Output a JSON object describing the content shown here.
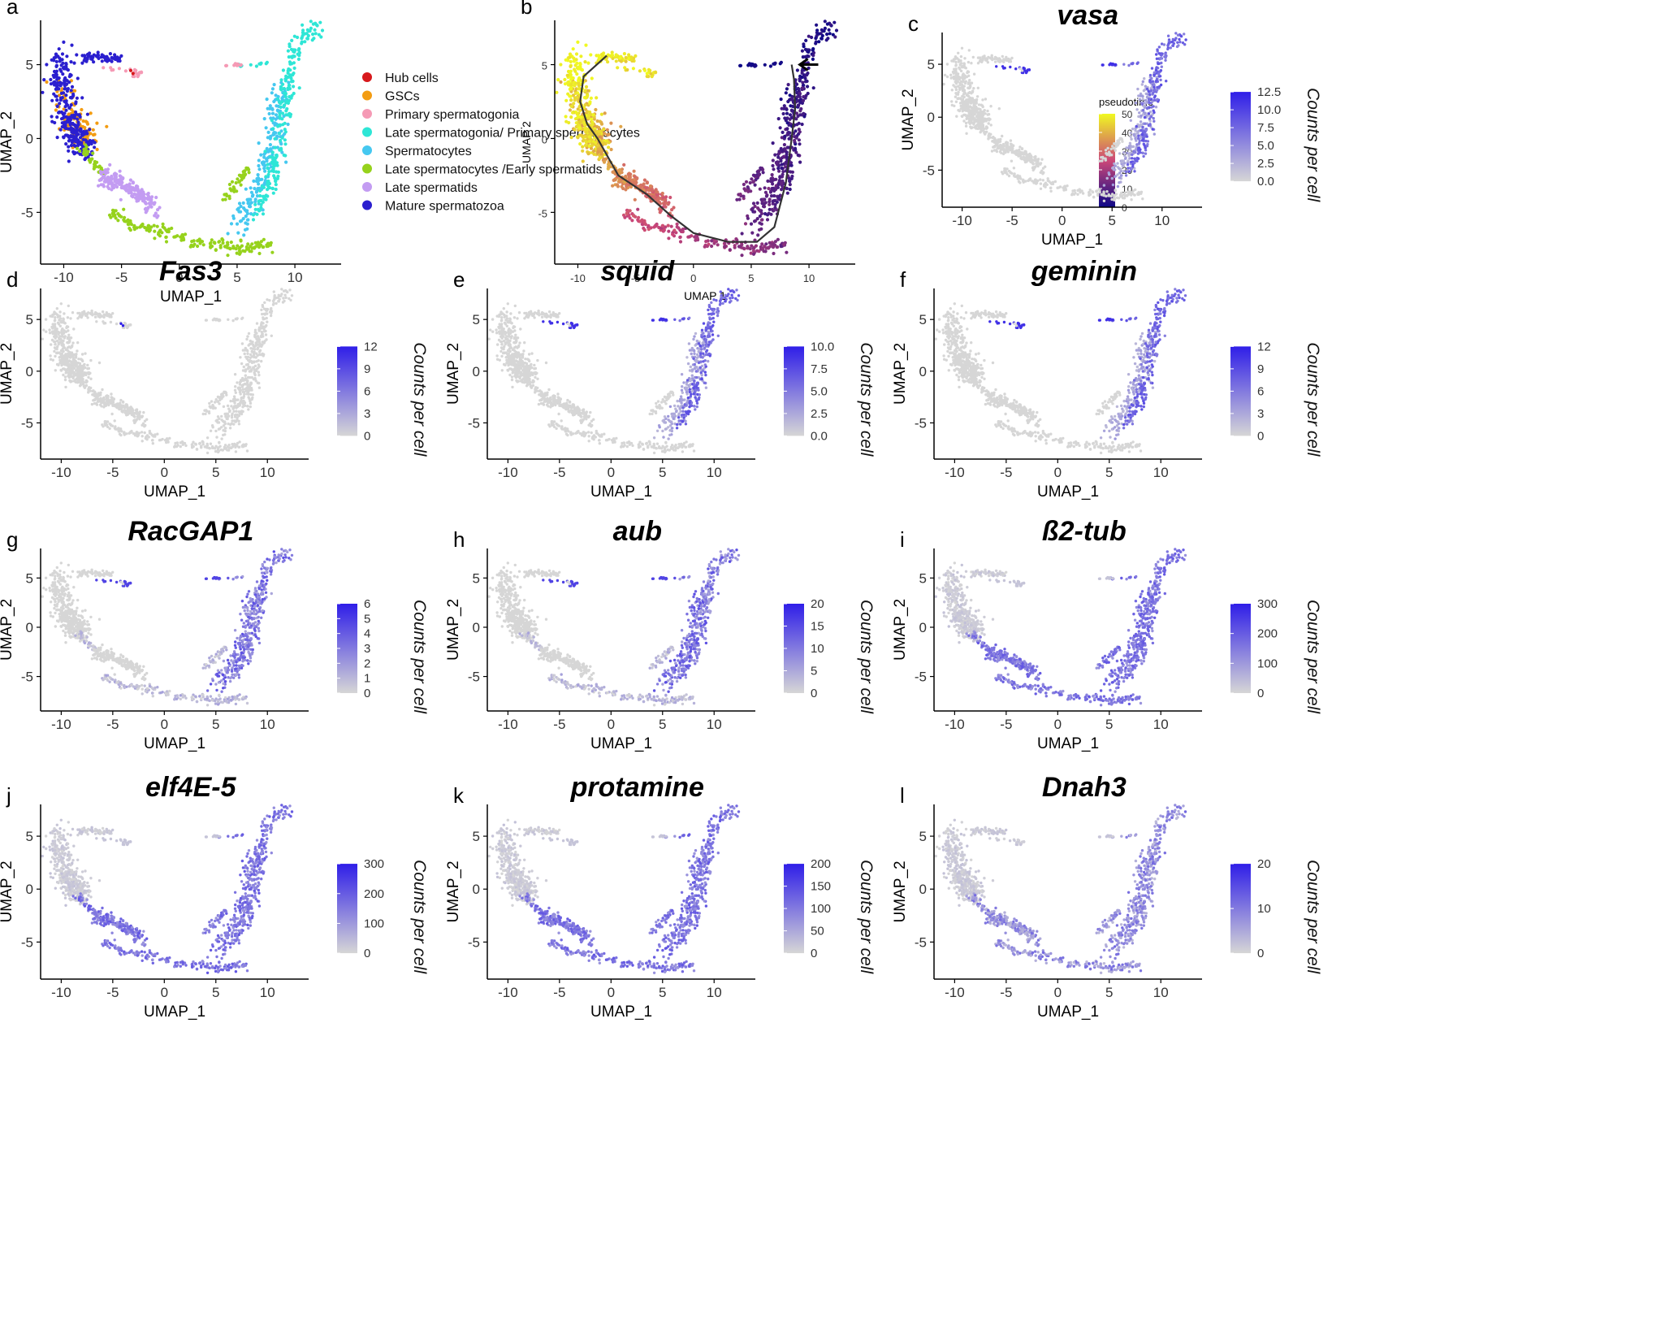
{
  "figure": {
    "colors": {
      "axis": "#000000",
      "grey": "#d6d6d6",
      "blue": "#2f1ee8",
      "pseudotime_low": "#0d0887",
      "pseudotime_mid": "#cc4778",
      "pseudotime_high": "#f0f921",
      "trajectory": "#333333"
    }
  },
  "chart_data": [
    {
      "panel": "a",
      "type": "scatter",
      "variant": "clusters",
      "title": "",
      "xlabel": "UMAP_1",
      "ylabel": "UMAP_2",
      "xlim": [
        -12,
        14
      ],
      "ylim": [
        -8.5,
        8
      ],
      "xticks": [
        -10,
        -5,
        0,
        5,
        10
      ],
      "xtick_labels": [
        "-10",
        "-5",
        "0",
        "5",
        "10"
      ],
      "yticks": [
        -5,
        0,
        5
      ],
      "ytick_labels": [
        "-5",
        "0",
        "5"
      ],
      "legend_position": "right",
      "legend": [
        {
          "name": "Hub cells",
          "color": "#d7191c"
        },
        {
          "name": "GSCs",
          "color": "#f39c12"
        },
        {
          "name": "Primary spermatogonia",
          "color": "#f59ab5"
        },
        {
          "name": "Late spermatogonia/ Primary spermatocytes",
          "color": "#2ee6d6"
        },
        {
          "name": "Spermatocytes",
          "color": "#45c8f0"
        },
        {
          "name": "Late spermatocytes /Early spermatids",
          "color": "#96d21c"
        },
        {
          "name": "Late spermatids",
          "color": "#c39cf2"
        },
        {
          "name": "Mature spermatozoa",
          "color": "#2b1fcf"
        }
      ]
    },
    {
      "panel": "b",
      "type": "scatter",
      "variant": "pseudotime",
      "title": "",
      "xlabel": "UMAP 1",
      "ylabel": "UMAP 2",
      "xlim": [
        -12,
        14
      ],
      "ylim": [
        -8.5,
        8
      ],
      "xticks": [
        -10,
        -5,
        0,
        5,
        10
      ],
      "xtick_labels": [
        "-10",
        "-5",
        "0",
        "5",
        "10"
      ],
      "yticks": [
        -5,
        0,
        5
      ],
      "ytick_labels": [
        "-5",
        "0",
        "5"
      ],
      "colorbar": {
        "title": "pseudotime",
        "ticks": [
          0,
          10,
          20,
          30,
          40,
          50
        ],
        "tick_labels": [
          "0",
          "10",
          "20",
          "30",
          "40",
          "50"
        ],
        "range": [
          0,
          50
        ]
      },
      "annotation": "arrow pointing to trajectory root near (8, 5)"
    },
    {
      "panel": "c",
      "type": "scatter",
      "variant": "gene",
      "title": "vasa",
      "xlabel": "UMAP_1",
      "ylabel": "UMAP_2",
      "xlim": [
        -12,
        14
      ],
      "ylim": [
        -8.5,
        8
      ],
      "xticks": [
        -10,
        -5,
        0,
        5,
        10
      ],
      "xtick_labels": [
        "-10",
        "-5",
        "0",
        "5",
        "10"
      ],
      "yticks": [
        -5,
        0,
        5
      ],
      "ytick_labels": [
        "-5",
        "0",
        "5"
      ],
      "colorbar": {
        "title": "Counts per cell",
        "range": [
          0,
          12.5
        ],
        "ticks": [
          0,
          2.5,
          5,
          7.5,
          10,
          12.5
        ],
        "tick_labels": [
          "0.0",
          "2.5",
          "5.0",
          "7.5",
          "10.0",
          "12.5"
        ]
      },
      "expression_pattern": "spermatogonia"
    },
    {
      "panel": "d",
      "type": "scatter",
      "variant": "gene",
      "title": "Fas3",
      "xlabel": "UMAP_1",
      "ylabel": "UMAP_2",
      "xlim": [
        -12,
        14
      ],
      "ylim": [
        -8.5,
        8
      ],
      "xticks": [
        -10,
        -5,
        0,
        5,
        10
      ],
      "xtick_labels": [
        "-10",
        "-5",
        "0",
        "5",
        "10"
      ],
      "yticks": [
        -5,
        0,
        5
      ],
      "ytick_labels": [
        "-5",
        "0",
        "5"
      ],
      "colorbar": {
        "title": "Counts per cell",
        "range": [
          0,
          12
        ],
        "ticks": [
          0,
          3,
          6,
          9,
          12
        ],
        "tick_labels": [
          "0",
          "3",
          "6",
          "9",
          "12"
        ]
      },
      "expression_pattern": "hub"
    },
    {
      "panel": "e",
      "type": "scatter",
      "variant": "gene",
      "title": "squid",
      "xlabel": "UMAP_1",
      "ylabel": "UMAP_2",
      "xlim": [
        -12,
        14
      ],
      "ylim": [
        -8.5,
        8
      ],
      "xticks": [
        -10,
        -5,
        0,
        5,
        10
      ],
      "xtick_labels": [
        "-10",
        "-5",
        "0",
        "5",
        "10"
      ],
      "yticks": [
        -5,
        0,
        5
      ],
      "ytick_labels": [
        "-5",
        "0",
        "5"
      ],
      "colorbar": {
        "title": "Counts per cell",
        "range": [
          0,
          10
        ],
        "ticks": [
          0,
          2.5,
          5,
          7.5,
          10
        ],
        "tick_labels": [
          "0.0",
          "2.5",
          "5.0",
          "7.5",
          "10.0"
        ]
      },
      "expression_pattern": "spermatogonia"
    },
    {
      "panel": "f",
      "type": "scatter",
      "variant": "gene",
      "title": "geminin",
      "xlabel": "UMAP_1",
      "ylabel": "UMAP_2",
      "xlim": [
        -12,
        14
      ],
      "ylim": [
        -8.5,
        8
      ],
      "xticks": [
        -10,
        -5,
        0,
        5,
        10
      ],
      "xtick_labels": [
        "-10",
        "-5",
        "0",
        "5",
        "10"
      ],
      "yticks": [
        -5,
        0,
        5
      ],
      "ytick_labels": [
        "-5",
        "0",
        "5"
      ],
      "colorbar": {
        "title": "Counts per cell",
        "range": [
          0,
          12
        ],
        "ticks": [
          0,
          3,
          6,
          9,
          12
        ],
        "tick_labels": [
          "0",
          "3",
          "6",
          "9",
          "12"
        ]
      },
      "expression_pattern": "spermatogonia"
    },
    {
      "panel": "g",
      "type": "scatter",
      "variant": "gene",
      "title": "RacGAP1",
      "xlabel": "UMAP_1",
      "ylabel": "UMAP_2",
      "xlim": [
        -12,
        14
      ],
      "ylim": [
        -8.5,
        8
      ],
      "xticks": [
        -10,
        -5,
        0,
        5,
        10
      ],
      "xtick_labels": [
        "-10",
        "-5",
        "0",
        "5",
        "10"
      ],
      "yticks": [
        -5,
        0,
        5
      ],
      "ytick_labels": [
        "-5",
        "0",
        "5"
      ],
      "colorbar": {
        "title": "Counts per cell",
        "range": [
          0,
          6
        ],
        "ticks": [
          0,
          1,
          2,
          3,
          4,
          5,
          6
        ],
        "tick_labels": [
          "0",
          "1",
          "2",
          "3",
          "4",
          "5",
          "6"
        ]
      },
      "expression_pattern": "spermatocytes"
    },
    {
      "panel": "h",
      "type": "scatter",
      "variant": "gene",
      "title": "aub",
      "xlabel": "UMAP_1",
      "ylabel": "UMAP_2",
      "xlim": [
        -12,
        14
      ],
      "ylim": [
        -8.5,
        8
      ],
      "xticks": [
        -10,
        -5,
        0,
        5,
        10
      ],
      "xtick_labels": [
        "-10",
        "-5",
        "0",
        "5",
        "10"
      ],
      "yticks": [
        -5,
        0,
        5
      ],
      "ytick_labels": [
        "-5",
        "0",
        "5"
      ],
      "colorbar": {
        "title": "Counts per cell",
        "range": [
          0,
          20
        ],
        "ticks": [
          0,
          5,
          10,
          15,
          20
        ],
        "tick_labels": [
          "0",
          "5",
          "10",
          "15",
          "20"
        ]
      },
      "expression_pattern": "spermatocytes"
    },
    {
      "panel": "i",
      "type": "scatter",
      "variant": "gene",
      "title": "ß2-tub",
      "xlabel": "UMAP_1",
      "ylabel": "UMAP_2",
      "xlim": [
        -12,
        14
      ],
      "ylim": [
        -8.5,
        8
      ],
      "xticks": [
        -10,
        -5,
        0,
        5,
        10
      ],
      "xtick_labels": [
        "-10",
        "-5",
        "0",
        "5",
        "10"
      ],
      "yticks": [
        -5,
        0,
        5
      ],
      "ytick_labels": [
        "-5",
        "0",
        "5"
      ],
      "colorbar": {
        "title": "Counts per cell",
        "range": [
          0,
          300
        ],
        "ticks": [
          0,
          100,
          200,
          300
        ],
        "tick_labels": [
          "0",
          "100",
          "200",
          "300"
        ]
      },
      "expression_pattern": "late"
    },
    {
      "panel": "j",
      "type": "scatter",
      "variant": "gene",
      "title": "elf4E-5",
      "xlabel": "UMAP_1",
      "ylabel": "UMAP_2",
      "xlim": [
        -12,
        14
      ],
      "ylim": [
        -8.5,
        8
      ],
      "xticks": [
        -10,
        -5,
        0,
        5,
        10
      ],
      "xtick_labels": [
        "-10",
        "-5",
        "0",
        "5",
        "10"
      ],
      "yticks": [
        -5,
        0,
        5
      ],
      "ytick_labels": [
        "-5",
        "0",
        "5"
      ],
      "colorbar": {
        "title": "Counts per cell",
        "range": [
          0,
          300
        ],
        "ticks": [
          0,
          100,
          200,
          300
        ],
        "tick_labels": [
          "0",
          "100",
          "200",
          "300"
        ]
      },
      "expression_pattern": "late"
    },
    {
      "panel": "k",
      "type": "scatter",
      "variant": "gene",
      "title": "protamine",
      "xlabel": "UMAP_1",
      "ylabel": "UMAP_2",
      "xlim": [
        -12,
        14
      ],
      "ylim": [
        -8.5,
        8
      ],
      "xticks": [
        -10,
        -5,
        0,
        5,
        10
      ],
      "xtick_labels": [
        "-10",
        "-5",
        "0",
        "5",
        "10"
      ],
      "yticks": [
        -5,
        0,
        5
      ],
      "ytick_labels": [
        "-5",
        "0",
        "5"
      ],
      "colorbar": {
        "title": "Counts per cell",
        "range": [
          0,
          200
        ],
        "ticks": [
          0,
          50,
          100,
          150,
          200
        ],
        "tick_labels": [
          "0",
          "50",
          "100",
          "150",
          "200"
        ]
      },
      "expression_pattern": "late"
    },
    {
      "panel": "l",
      "type": "scatter",
      "variant": "gene",
      "title": "Dnah3",
      "xlabel": "UMAP_1",
      "ylabel": "UMAP_2",
      "xlim": [
        -12,
        14
      ],
      "ylim": [
        -8.5,
        8
      ],
      "xticks": [
        -10,
        -5,
        0,
        5,
        10
      ],
      "xtick_labels": [
        "-10",
        "-5",
        "0",
        "5",
        "10"
      ],
      "yticks": [
        -5,
        0,
        5
      ],
      "ytick_labels": [
        "-5",
        "0",
        "5"
      ],
      "colorbar": {
        "title": "Counts per cell",
        "range": [
          0,
          20
        ],
        "ticks": [
          0,
          10,
          20
        ],
        "tick_labels": [
          "0",
          "10",
          "20"
        ]
      },
      "expression_pattern": "mid"
    }
  ]
}
